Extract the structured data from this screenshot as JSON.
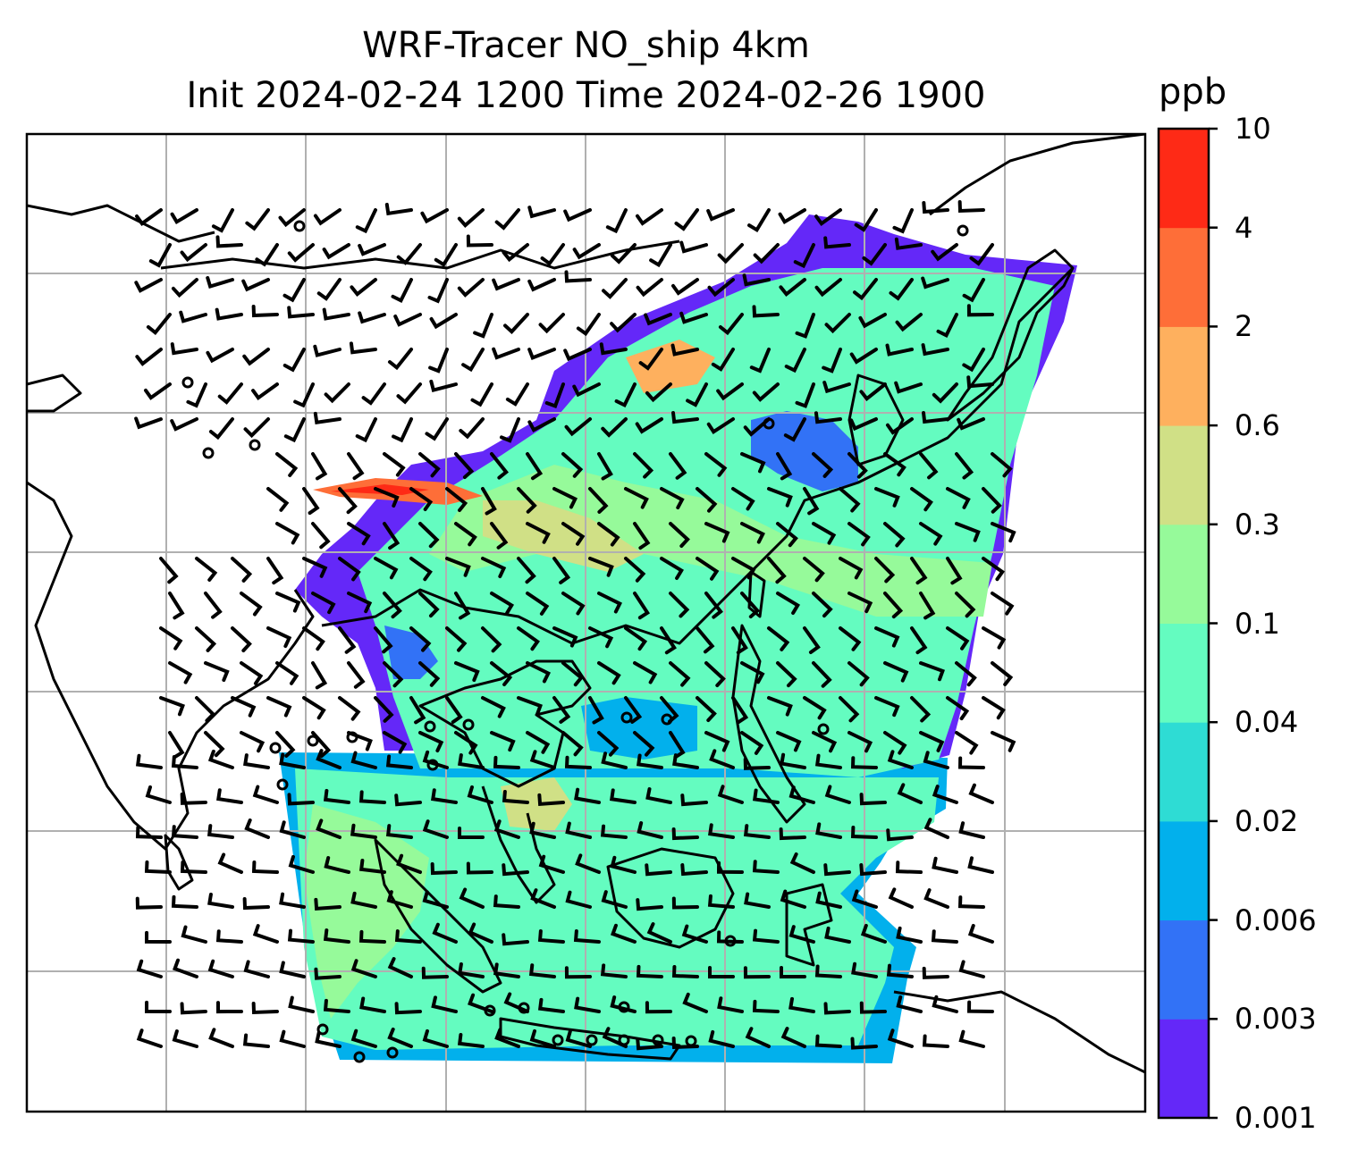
{
  "title": {
    "line1": "WRF-Tracer NO_ship 4km",
    "line2": "Init 2024-02-24 1200 Time 2024-02-26 1900"
  },
  "colorbar": {
    "unit": "ppb",
    "ticks": [
      "0.001",
      "0.003",
      "0.006",
      "0.02",
      "0.04",
      "0.1",
      "0.3",
      "0.6",
      "2",
      "4",
      "10"
    ],
    "colors": [
      "#6428f8",
      "#3272f6",
      "#02b0ec",
      "#2edcd4",
      "#64fcc0",
      "#96fa9a",
      "#d0e086",
      "#feb05e",
      "#fe6e38",
      "#fe2a16"
    ]
  },
  "map": {
    "field": "NO_ship",
    "grid": true,
    "overlays": [
      "coastlines",
      "wind-barbs"
    ]
  }
}
